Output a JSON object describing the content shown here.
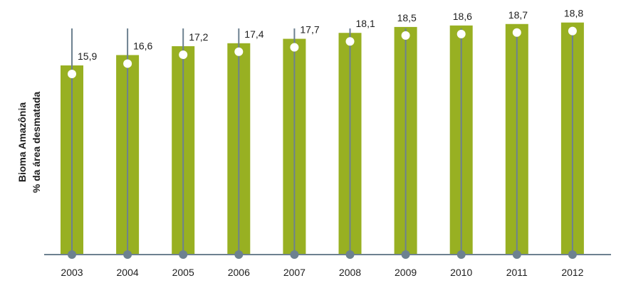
{
  "chart_data": {
    "type": "bar",
    "categories": [
      "2003",
      "2004",
      "2005",
      "2006",
      "2007",
      "2008",
      "2009",
      "2010",
      "2011",
      "2012"
    ],
    "values": [
      15.9,
      16.6,
      17.2,
      17.4,
      17.7,
      18.1,
      18.5,
      18.6,
      18.7,
      18.8
    ],
    "value_labels": [
      "15,9",
      "16,6",
      "17,2",
      "17,4",
      "17,7",
      "18,1",
      "18,5",
      "18,6",
      "18,7",
      "18,8"
    ],
    "ylabel_line1": "Bioma Amazônia",
    "ylabel_line2": "% da área desmatada",
    "grid": false,
    "colors": {
      "bar": "#98b022",
      "axis": "#6d8190",
      "marker": "#ffffff"
    }
  }
}
